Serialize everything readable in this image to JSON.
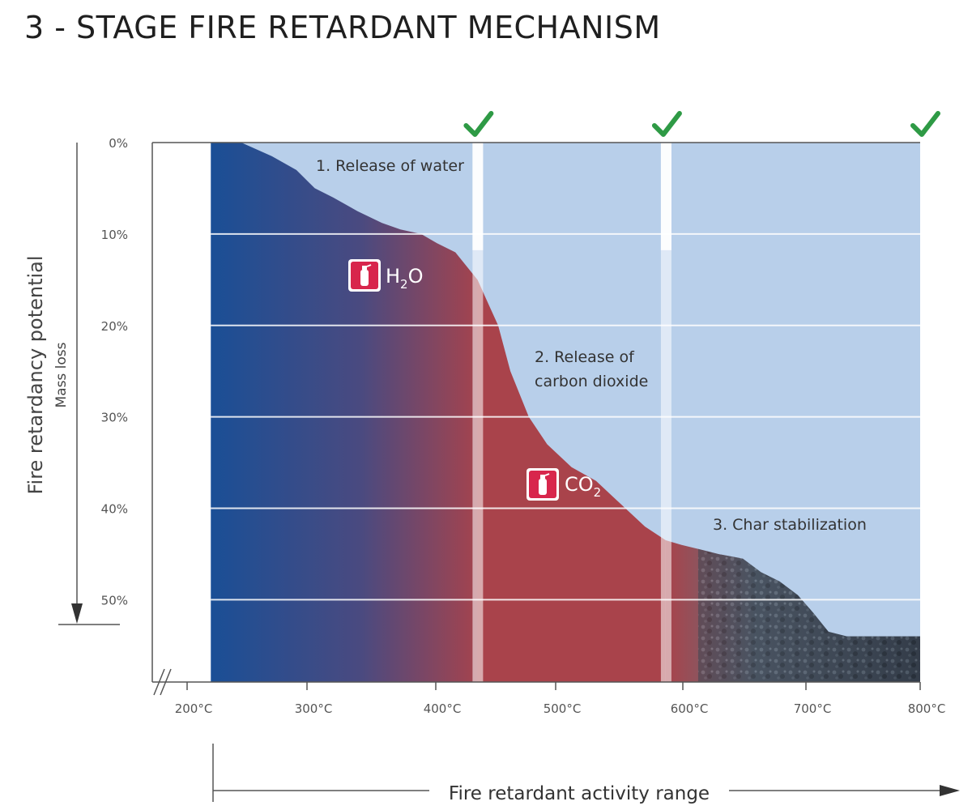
{
  "title": "3 - STAGE FIRE RETARDANT MECHANISM",
  "colors": {
    "background_band": "#b8cfea",
    "gridline": "#ffffff",
    "water_blue": "#1a4f96",
    "co2_red": "#a9434b",
    "char_dark": "#2a323e",
    "check_green": "#2e9a45",
    "icon_red": "#d8264c"
  },
  "chart_data": {
    "type": "area",
    "title": "3 - STAGE FIRE RETARDANT MECHANISM",
    "ylabel": "Fire retardancy potential",
    "ylabel_secondary": "Mass loss",
    "xlabel": "Fire retardant activity range",
    "x_ticks": [
      "200°C",
      "300°C",
      "400°C",
      "500°C",
      "600°C",
      "700°C",
      "800°C"
    ],
    "x_tick_values": [
      200,
      300,
      400,
      500,
      600,
      700,
      800
    ],
    "y_ticks": [
      "0%",
      "10%",
      "20%",
      "30%",
      "40%",
      "50%"
    ],
    "y_tick_values": [
      0,
      10,
      20,
      30,
      40,
      50
    ],
    "xlim": [
      200,
      800
    ],
    "ylim": [
      0,
      59
    ],
    "y_inverted": true,
    "grid": true,
    "activity_start": 220,
    "series": [
      {
        "x": [
          220,
          245,
          270,
          290,
          305,
          320,
          340,
          360,
          375,
          392,
          405,
          420,
          438,
          455,
          465,
          480,
          495,
          515,
          535,
          555,
          575,
          592,
          605,
          620,
          635,
          655,
          670,
          685,
          700,
          713,
          725,
          740,
          760,
          785,
          800
        ],
        "y": [
          0,
          0,
          1.5,
          3,
          5,
          6,
          7.5,
          8.8,
          9.5,
          10,
          11,
          12,
          15,
          20,
          25,
          30,
          33,
          35.5,
          37,
          39.5,
          42,
          43.5,
          44,
          44.5,
          45,
          45.5,
          47,
          48,
          49.5,
          51.5,
          53.5,
          54,
          54,
          54,
          54
        ]
      }
    ],
    "stage_boundaries": [
      438,
      592,
      800
    ],
    "stages": [
      {
        "label": "1. Release of water",
        "compound": "H2O"
      },
      {
        "label_line1": "2. Release of",
        "label_line2": "carbon dioxide",
        "compound": "CO2"
      },
      {
        "label": "3. Char stabilization"
      }
    ],
    "compound_labels": {
      "h2o": {
        "base1": "H",
        "sub": "2",
        "base2": "O"
      },
      "co2": {
        "base": "CO",
        "sub": "2"
      }
    }
  }
}
